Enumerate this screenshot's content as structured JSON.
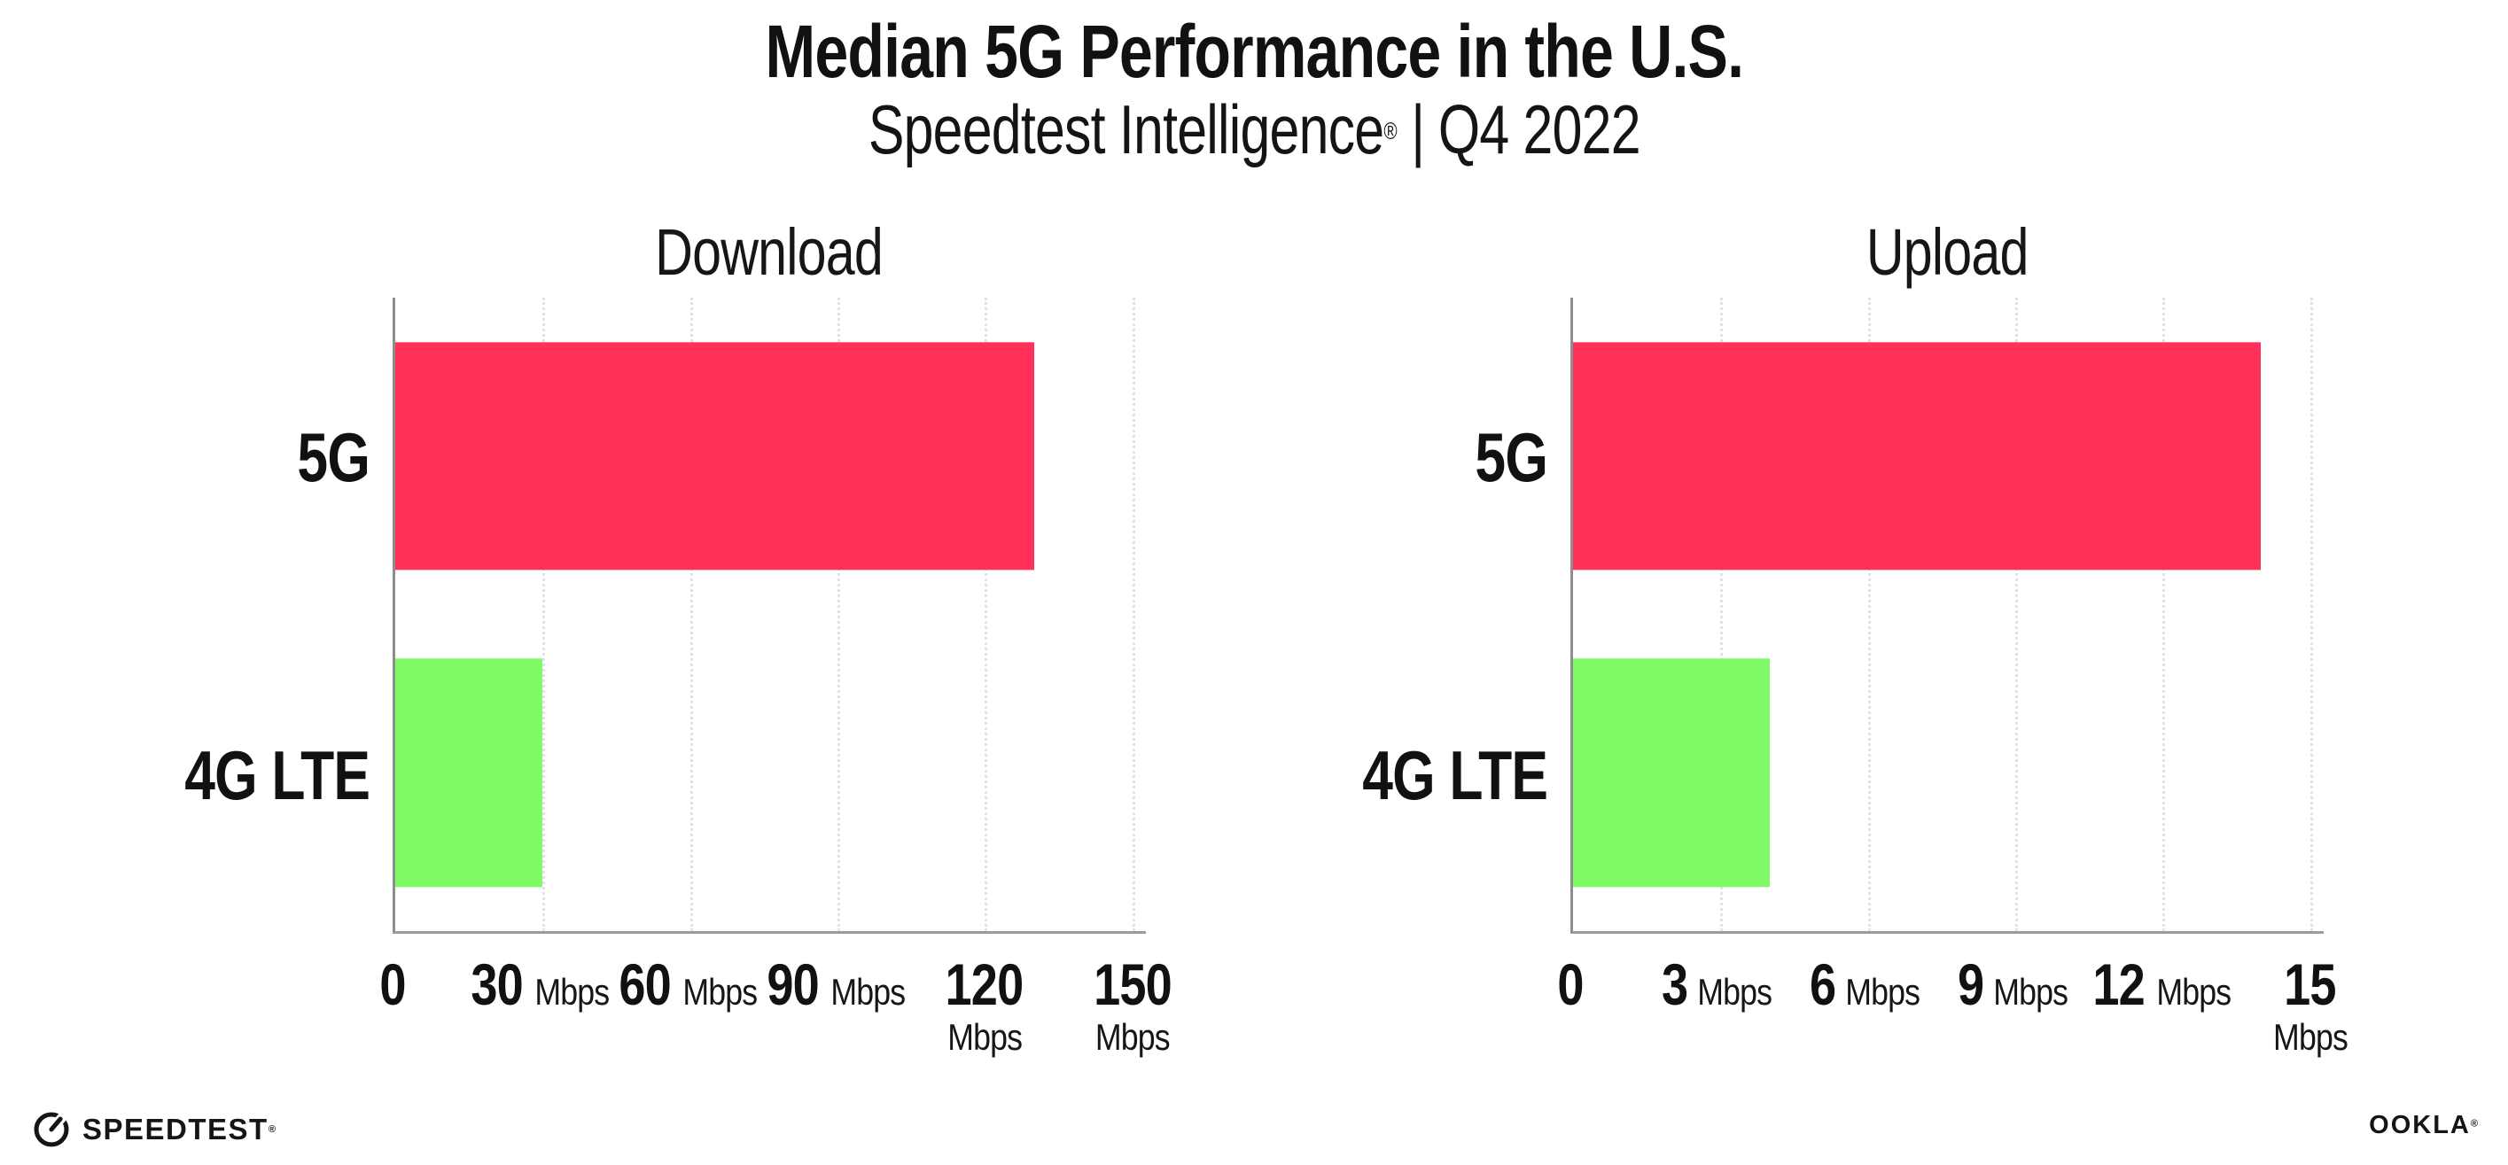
{
  "header": {
    "title": "Median 5G Performance in the U.S.",
    "subtitle_brand": "Speedtest Intelligence",
    "subtitle_reg": "®",
    "subtitle_separator": "|",
    "subtitle_period": "Q4 2022"
  },
  "footer": {
    "speedtest_logo_text": "SPEEDTEST",
    "speedtest_reg": "®",
    "ookla_logo_text": "OOKLA",
    "ookla_reg": "®"
  },
  "colors": {
    "bar_5g": "#FF3158",
    "bar_4g_lte": "#80FA66",
    "axis": "#9B9B9B",
    "gridline": "#E0E0EE",
    "text": "#111111",
    "background": "#FFFFFF"
  },
  "chart_data": [
    {
      "type": "bar",
      "orientation": "horizontal",
      "title": "Download",
      "categories": [
        "5G",
        "4G LTE"
      ],
      "values": [
        130,
        30
      ],
      "unit": "Mbps",
      "xlabel": "",
      "ylabel": "",
      "xlim": [
        0,
        150
      ],
      "xticks": [
        0,
        30,
        60,
        90,
        120,
        150
      ],
      "bar_colors": [
        "#FF3158",
        "#80FA66"
      ],
      "grid": "vertical-dotted",
      "legend": "none"
    },
    {
      "type": "bar",
      "orientation": "horizontal",
      "title": "Upload",
      "categories": [
        "5G",
        "4G LTE"
      ],
      "values": [
        14,
        4
      ],
      "unit": "Mbps",
      "xlabel": "",
      "ylabel": "",
      "xlim": [
        0,
        15
      ],
      "xticks": [
        0,
        3,
        6,
        9,
        12,
        15
      ],
      "bar_colors": [
        "#FF3158",
        "#80FA66"
      ],
      "grid": "vertical-dotted",
      "legend": "none"
    }
  ]
}
